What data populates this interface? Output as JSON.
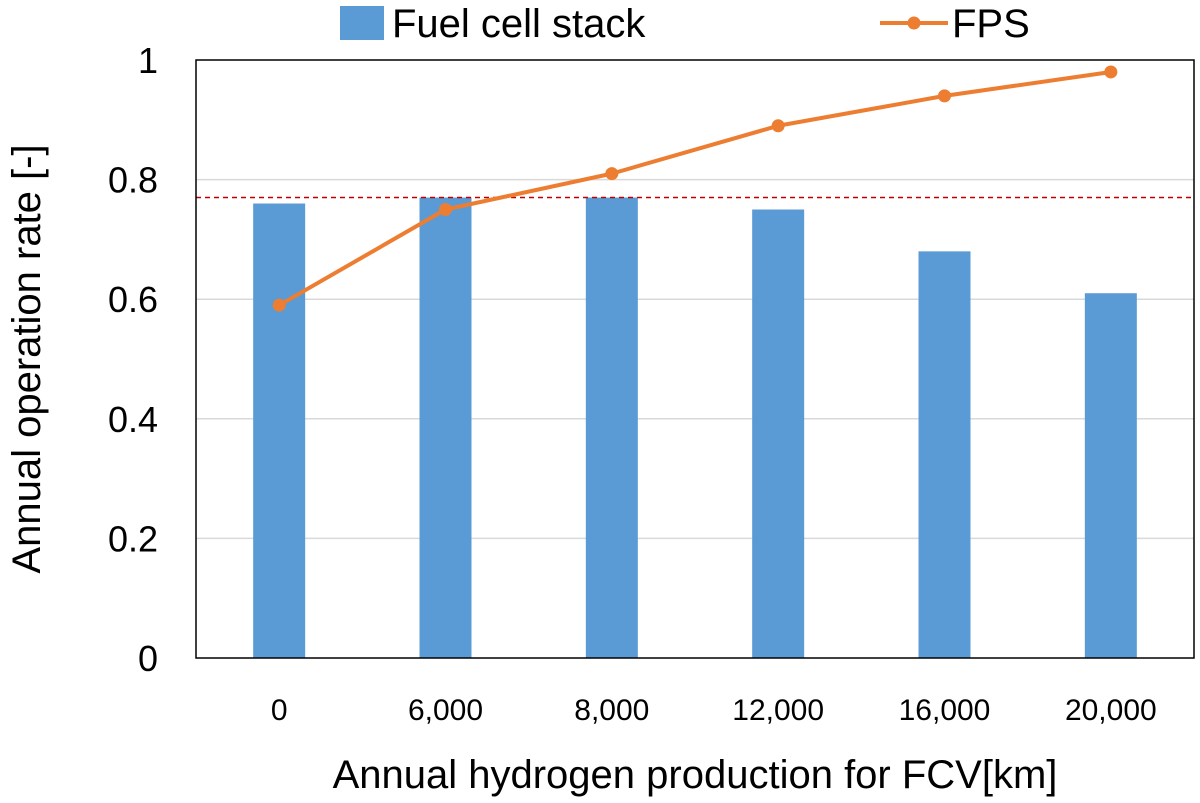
{
  "chart_data": {
    "type": "bar",
    "categories": [
      "0",
      "6,000",
      "8,000",
      "12,000",
      "16,000",
      "20,000"
    ],
    "series": [
      {
        "name": "Fuel cell stack",
        "type": "bar",
        "color": "#5b9bd5",
        "values": [
          0.76,
          0.77,
          0.77,
          0.75,
          0.68,
          0.61
        ]
      },
      {
        "name": "FPS",
        "type": "line",
        "color": "#ed7d31",
        "values": [
          0.59,
          0.75,
          0.81,
          0.89,
          0.94,
          0.98
        ]
      }
    ],
    "reference_line": {
      "value": 0.77,
      "color": "#c00000",
      "style": "dashed"
    },
    "xlabel": "Annual hydrogen production for FCV[km]",
    "ylabel": "Annual operation rate [-]",
    "ylim": [
      0,
      1
    ],
    "yticks": [
      "0",
      "0.2",
      "0.4",
      "0.6",
      "0.8",
      "1"
    ],
    "ytick_values": [
      0,
      0.2,
      0.4,
      0.6,
      0.8,
      1
    ],
    "grid": true,
    "legend_position": "top"
  }
}
